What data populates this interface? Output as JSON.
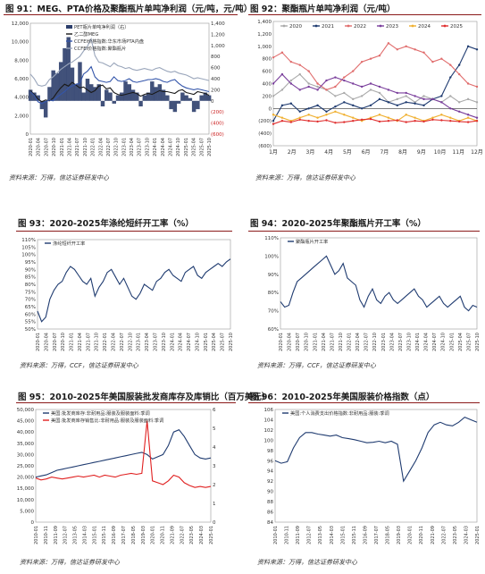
{
  "figures": [
    {
      "title": "图 91：MEG、PTA价格及聚酯瓶片单吨净利润（元/吨，元/吨）",
      "source": "资料来源：万得，信达证券研发中心",
      "chart_data": {
        "type": "line",
        "x_ticks": [
          "2020-01",
          "2020-04",
          "2020-07",
          "2020-10",
          "2021-01",
          "2021-04",
          "2021-07",
          "2021-10",
          "2022-01",
          "2022-04",
          "2022-07",
          "2022-10",
          "2023-01",
          "2023-04",
          "2023-07",
          "2023-10",
          "2024-01",
          "2024-04",
          "2024-07",
          "2024-10",
          "2025-01",
          "2025-04",
          "2025-07",
          "2025-10"
        ],
        "ylim": [
          0,
          12000
        ],
        "y_ticks": [
          "0",
          "2,000",
          "4,000",
          "6,000",
          "8,000",
          "10,000",
          "12,000"
        ],
        "y2lim": [
          -600,
          1400
        ],
        "y2_ticks": [
          "(600)",
          "(400)",
          "(200)",
          "0",
          "200",
          "400",
          "600",
          "800",
          "1,000",
          "1,200",
          "1,400"
        ],
        "series": [
          {
            "name": "PET瓶片单吨净利润（右）",
            "type": "area",
            "axis": "right",
            "color": "#2c3e6b",
            "values": [
              200,
              150,
              100,
              -150,
              -300,
              250,
              550,
              500,
              700,
              950,
              1150,
              600,
              300,
              700,
              150,
              400,
              300,
              250,
              300,
              -100,
              200,
              150,
              -50,
              100,
              150,
              350,
              300,
              200,
              150,
              -100,
              100,
              150,
              350,
              250,
              300,
              200,
              100,
              -150,
              -200,
              -50,
              150,
              100,
              50,
              -200,
              -150,
              100,
              150,
              100
            ]
          },
          {
            "name": "乙二醇MEG",
            "type": "line",
            "axis": "left",
            "color": "#1a1a1a",
            "values": [
              4700,
              4300,
              3800,
              3500,
              3700,
              3600,
              3900,
              4500,
              5000,
              5400,
              5200,
              5600,
              5300,
              5000,
              5100,
              4800,
              4500,
              4700,
              5200,
              5300,
              4900,
              5000,
              4500,
              4300,
              4200,
              4300,
              4400,
              4500,
              4400,
              4100,
              4300,
              4400,
              4300,
              4500,
              4700,
              4600,
              4600,
              4500,
              4400,
              4700,
              4800,
              4500,
              4400,
              4300,
              4600,
              4500,
              4400,
              4200
            ]
          },
          {
            "name": "CCFEI价格指数:华东市场PTA内盘",
            "type": "line",
            "axis": "left",
            "color": "#3355aa",
            "values": [
              4600,
              4200,
              3500,
              3300,
              3500,
              3700,
              3600,
              4000,
              4300,
              4600,
              5000,
              5200,
              5400,
              5500,
              6500,
              6800,
              7300,
              6200,
              5800,
              5700,
              5600,
              5700,
              6200,
              5800,
              5700,
              5800,
              6000,
              5700,
              5600,
              5700,
              5800,
              5900,
              5900,
              6000,
              5900,
              5700,
              5600,
              5800,
              5900,
              5500,
              5200,
              5000,
              4900,
              4800,
              4900,
              4800,
              4700,
              4600
            ]
          },
          {
            "name": "CCFEI价格指数:聚酯瓶片",
            "type": "line",
            "axis": "left",
            "color": "#9aa6bb",
            "values": [
              6500,
              6000,
              5300,
              5200,
              5300,
              5900,
              6200,
              6600,
              7000,
              7300,
              7600,
              7800,
              8100,
              8400,
              9000,
              9500,
              10300,
              8500,
              7800,
              7700,
              7500,
              7300,
              7700,
              7400,
              7300,
              7100,
              7200,
              7000,
              6900,
              7000,
              7100,
              7000,
              6900,
              7100,
              7200,
              7000,
              6800,
              6700,
              6800,
              6600,
              6500,
              6400,
              6200,
              6000,
              6100,
              6000,
              5900,
              5800
            ]
          }
        ]
      }
    },
    {
      "title": "图 92：聚酯瓶片单吨净利润（元/吨）",
      "source": "资料来源：万得，信达证券研发中心",
      "chart_data": {
        "type": "line",
        "x_ticks": [
          "1月",
          "2月",
          "3月",
          "4月",
          "5月",
          "6月",
          "7月",
          "8月",
          "9月",
          "10月",
          "11月",
          "12月"
        ],
        "ylim": [
          -600,
          1400
        ],
        "y_ticks": [
          "(600)",
          "(400)",
          "(200)",
          "0",
          "200",
          "400",
          "600",
          "800",
          "1,000",
          "1,200",
          "1,400"
        ],
        "legend": "top",
        "series": [
          {
            "name": "2020",
            "color": "#aaaaaa",
            "values": [
              200,
              300,
              450,
              550,
              400,
              350,
              300,
              200,
              250,
              150,
              200,
              300,
              250,
              100,
              150,
              200,
              100,
              200,
              150,
              100,
              200,
              100,
              150,
              100
            ]
          },
          {
            "name": "2021",
            "color": "#1f3b70",
            "values": [
              -200,
              50,
              80,
              -50,
              0,
              50,
              -50,
              30,
              100,
              50,
              0,
              50,
              150,
              100,
              50,
              100,
              80,
              50,
              150,
              200,
              500,
              700,
              1000,
              950
            ]
          },
          {
            "name": "2022",
            "color": "#e06c6c",
            "values": [
              820,
              900,
              750,
              700,
              600,
              400,
              300,
              350,
              500,
              600,
              750,
              800,
              850,
              1050,
              950,
              1000,
              950,
              900,
              750,
              800,
              700,
              550,
              400,
              350
            ]
          },
          {
            "name": "2023",
            "color": "#7a3f9c",
            "values": [
              400,
              550,
              400,
              300,
              350,
              300,
              450,
              500,
              450,
              400,
              350,
              400,
              350,
              300,
              250,
              250,
              200,
              150,
              150,
              100,
              0,
              -50,
              -100,
              -150
            ]
          },
          {
            "name": "2024",
            "color": "#f0b030",
            "values": [
              -100,
              -150,
              -200,
              -150,
              -100,
              -150,
              -100,
              -50,
              -100,
              -150,
              -200,
              -150,
              -100,
              -150,
              -200,
              -100,
              -150,
              -200,
              -150,
              -100,
              -150,
              -200,
              -150,
              -200
            ]
          },
          {
            "name": "2025",
            "color": "#e03030",
            "values": [
              -250,
              -200,
              -220,
              -180,
              -200,
              -210,
              -190,
              -230,
              -220,
              -200,
              -180,
              -170,
              -210,
              -200,
              -190,
              -220,
              -200,
              -210,
              -180,
              -190,
              -200,
              -210,
              -220,
              -200
            ]
          }
        ]
      }
    },
    {
      "title": "图 93：2020-2025年涤纶短纤开工率（%）",
      "source": "资料来源：万得，CCF，信达证券研发中心",
      "chart_data": {
        "type": "line",
        "x_ticks": [
          "2020-01",
          "2020-04",
          "2020-07",
          "2020-10",
          "2021-01",
          "2021-04",
          "2021-07",
          "2021-10",
          "2022-01",
          "2022-04",
          "2022-07",
          "2022-10",
          "2023-01",
          "2023-04",
          "2023-07",
          "2023-10",
          "2024-01",
          "2024-04",
          "2024-07",
          "2024-10",
          "2025-01",
          "2025-04",
          "2025-07",
          "2025-10"
        ],
        "ylim": [
          50,
          110
        ],
        "y_ticks": [
          "50%",
          "55%",
          "60%",
          "65%",
          "70%",
          "75%",
          "80%",
          "85%",
          "90%",
          "95%",
          "100%",
          "105%",
          "110%"
        ],
        "series": [
          {
            "name": "涤纶短纤开工率",
            "color": "#1f3b70",
            "values": [
              62,
              55,
              58,
              70,
              76,
              80,
              82,
              88,
              92,
              90,
              86,
              82,
              80,
              84,
              72,
              78,
              82,
              88,
              90,
              85,
              80,
              84,
              78,
              72,
              70,
              74,
              80,
              78,
              76,
              82,
              84,
              88,
              90,
              86,
              84,
              82,
              88,
              90,
              92,
              86,
              84,
              88,
              90,
              92,
              94,
              92,
              95,
              97
            ]
          }
        ]
      }
    },
    {
      "title": "图 94：2020-2025年聚酯瓶片开工率（%）",
      "source": "资料来源：万得，CCF，信达证券研发中心",
      "chart_data": {
        "type": "line",
        "x_ticks": [
          "2020-01",
          "2020-04",
          "2020-07",
          "2020-10",
          "2021-01",
          "2021-04",
          "2021-07",
          "2021-10",
          "2022-01",
          "2022-04",
          "2022-07",
          "2022-10",
          "2023-01",
          "2023-04",
          "2023-07",
          "2023-10",
          "2024-01",
          "2024-04",
          "2024-07",
          "2024-10",
          "2025-01",
          "2025-04",
          "2025-07",
          "2025-10"
        ],
        "ylim": [
          60,
          110
        ],
        "y_ticks": [
          "60%",
          "70%",
          "80%",
          "90%",
          "100%",
          "110%"
        ],
        "series": [
          {
            "name": "聚酯瓶片开工率",
            "color": "#1f3b70",
            "values": [
              75,
              72,
              73,
              80,
              86,
              88,
              90,
              92,
              94,
              96,
              98,
              100,
              95,
              90,
              92,
              96,
              88,
              86,
              84,
              76,
              72,
              78,
              82,
              76,
              74,
              78,
              80,
              76,
              74,
              76,
              78,
              80,
              82,
              78,
              76,
              72,
              74,
              76,
              78,
              74,
              72,
              74,
              76,
              78,
              72,
              70,
              73,
              72
            ]
          }
        ]
      }
    },
    {
      "title": "图 95：2010-2025年美国服装批发商库存及库销比（百万美元）",
      "source": "资料来源：万得，信达证券研发中心",
      "chart_data": {
        "type": "line",
        "x_ticks": [
          "2010-01",
          "2010-11",
          "2011-09",
          "2012-07",
          "2013-05",
          "2014-03",
          "2015-01",
          "2015-11",
          "2016-09",
          "2017-07",
          "2018-05",
          "2019-03",
          "2020-01",
          "2020-11",
          "2021-09",
          "2022-07",
          "2023-05",
          "2024-03",
          "2025-01"
        ],
        "ylim": [
          0,
          50000
        ],
        "y_ticks": [
          "0",
          "5,000",
          "10,000",
          "15,000",
          "20,000",
          "25,000",
          "30,000",
          "35,000",
          "40,000",
          "45,000",
          "50,000"
        ],
        "y2lim": [
          0,
          6
        ],
        "y2_ticks": [
          "0",
          "1",
          "2",
          "3",
          "4",
          "5",
          "6"
        ],
        "series": [
          {
            "name": "美国:批发商库存:非耐用品:服装及服装面料:季调",
            "axis": "left",
            "color": "#1f3b70",
            "values": [
              20000,
              20500,
              21000,
              22000,
              23000,
              23500,
              24000,
              24500,
              25000,
              25500,
              26000,
              26500,
              27000,
              27500,
              28000,
              28500,
              29000,
              29500,
              30000,
              30500,
              31000,
              30000,
              28000,
              29000,
              30000,
              34000,
              40000,
              41000,
              38000,
              34000,
              30000,
              28500,
              28000,
              28500
            ]
          },
          {
            "name": "美国:批发商库存销售比:非耐用品:服装及服装面料:季调",
            "axis": "right",
            "color": "#e02020",
            "values": [
              2.35,
              2.25,
              2.3,
              2.4,
              2.35,
              2.3,
              2.35,
              2.4,
              2.45,
              2.4,
              2.45,
              2.5,
              2.4,
              2.5,
              2.45,
              2.4,
              2.5,
              2.55,
              2.6,
              2.55,
              2.6,
              5.4,
              2.2,
              2.1,
              2.0,
              2.2,
              2.5,
              2.4,
              2.1,
              1.95,
              1.85,
              1.9,
              1.85,
              1.9
            ]
          }
        ]
      }
    },
    {
      "title": "图 96：2010-2025年美国服装价格指数（点）",
      "source": "资料来源：万得，信达证券研发中心",
      "chart_data": {
        "type": "line",
        "x_ticks": [
          "2010-01",
          "2010-11",
          "2011-09",
          "2012-07",
          "2013-05",
          "2014-03",
          "2015-01",
          "2015-11",
          "2016-09",
          "2017-07",
          "2018-05",
          "2019-03",
          "2020-01",
          "2020-11",
          "2021-09",
          "2022-07",
          "2023-05",
          "2024-03",
          "2025-01"
        ],
        "ylim": [
          84,
          106
        ],
        "y_ticks": [
          "84",
          "86",
          "88",
          "90",
          "92",
          "94",
          "96",
          "98",
          "100",
          "102",
          "104",
          "106"
        ],
        "series": [
          {
            "name": "美国:个人消费支出价格指数:非耐用品:服装:季调",
            "color": "#1f3b70",
            "values": [
              96,
              95.5,
              95.8,
              98.5,
              100.5,
              101.5,
              101.5,
              101.2,
              101.0,
              100.8,
              101.0,
              100.5,
              100.3,
              100.1,
              99.8,
              99.5,
              99.6,
              99.8,
              99.5,
              99.8,
              99.2,
              92.0,
              94.0,
              96.0,
              98.5,
              101.5,
              103.0,
              103.5,
              103.0,
              102.8,
              103.5,
              104.5,
              104.0,
              103.5
            ]
          }
        ]
      }
    }
  ]
}
